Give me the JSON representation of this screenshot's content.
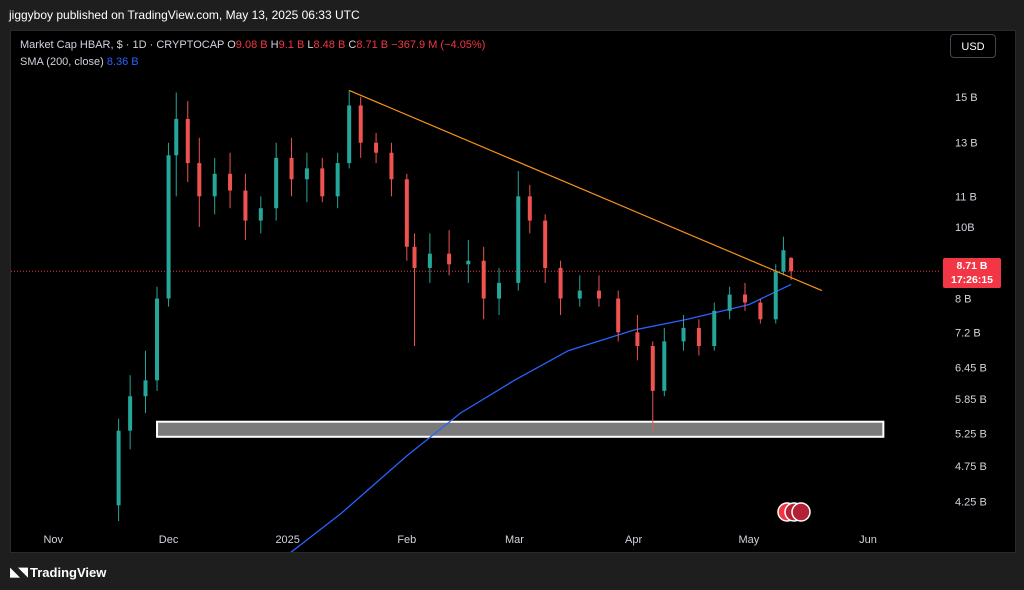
{
  "header": {
    "publisher_line": "jiggyboy published on TradingView.com, May 13, 2025 06:33 UTC"
  },
  "legend": {
    "symbol": "Market Cap HBAR, $ · 1D · CRYPTOCAP",
    "open_label": "O",
    "open": "9.08 B",
    "high_label": "H",
    "high": "9.1 B",
    "low_label": "L",
    "low": "8.48 B",
    "close_label": "C",
    "close": "8.71 B",
    "change": "−367.9 M (−4.05%)",
    "sma_label": "SMA (200, close)",
    "sma_value": "8.36 B"
  },
  "currency_button": "USD",
  "price_tag": {
    "value": "8.71 B",
    "countdown": "17:26:15"
  },
  "footer": {
    "brand": "TradingView"
  },
  "colors": {
    "up": "#26a69a",
    "down": "#ef5350",
    "sma": "#2962ff",
    "trendline": "#f7931a",
    "last_price": "#f23645"
  },
  "chart_data": {
    "type": "candlestick",
    "title": "Market Cap HBAR",
    "y_scale": "log",
    "y_ticks": [
      "15 B",
      "13 B",
      "11 B",
      "10B",
      "8 B",
      "7.2 B",
      "6.45 B",
      "5.85 B",
      "5.25 B",
      "4.75 B",
      "4.25 B"
    ],
    "y_tick_values": [
      15,
      13,
      11,
      10,
      8,
      7.2,
      6.45,
      5.85,
      5.25,
      4.75,
      4.25
    ],
    "x_ticks": [
      "Nov",
      "Dec",
      "2025",
      "Feb",
      "Mar",
      "Apr",
      "May",
      "Jun"
    ],
    "last_price": 8.71,
    "trendline": {
      "from": {
        "date": "2025-01-17",
        "value": 15.3
      },
      "to": {
        "date": "2025-05-20",
        "value": 8.2
      }
    },
    "support_zone": {
      "from_date": "2024-11-28",
      "to_date": "2025-06-05",
      "low": 5.2,
      "high": 5.45
    },
    "sma": {
      "name": "SMA (200, close)",
      "points": [
        [
          "2025-01-01",
          3.6
        ],
        [
          "2025-01-15",
          4.1
        ],
        [
          "2025-02-01",
          4.9
        ],
        [
          "2025-02-15",
          5.6
        ],
        [
          "2025-03-01",
          6.2
        ],
        [
          "2025-03-15",
          6.8
        ],
        [
          "2025-04-01",
          7.25
        ],
        [
          "2025-04-15",
          7.5
        ],
        [
          "2025-05-01",
          7.85
        ],
        [
          "2025-05-12",
          8.36
        ]
      ]
    },
    "candles_approx": [
      [
        "2024-11-18",
        4.2,
        5.5,
        4.0,
        5.3
      ],
      [
        "2024-11-21",
        5.3,
        6.3,
        5.0,
        5.9
      ],
      [
        "2024-11-25",
        5.9,
        6.8,
        5.6,
        6.2
      ],
      [
        "2024-11-28",
        6.2,
        8.3,
        6.0,
        8.0
      ],
      [
        "2024-12-01",
        8.0,
        13.0,
        7.8,
        12.5
      ],
      [
        "2024-12-03",
        12.5,
        15.2,
        11.0,
        14.0
      ],
      [
        "2024-12-06",
        14.0,
        14.8,
        11.5,
        12.2
      ],
      [
        "2024-12-09",
        12.2,
        13.2,
        10.0,
        11.0
      ],
      [
        "2024-12-13",
        11.0,
        12.4,
        10.4,
        11.8
      ],
      [
        "2024-12-17",
        11.8,
        12.6,
        10.6,
        11.2
      ],
      [
        "2024-12-21",
        11.2,
        11.8,
        9.6,
        10.2
      ],
      [
        "2024-12-25",
        10.2,
        11.0,
        9.8,
        10.6
      ],
      [
        "2024-12-29",
        10.6,
        13.0,
        10.2,
        12.4
      ],
      [
        "2025-01-02",
        12.4,
        13.2,
        11.0,
        11.6
      ],
      [
        "2025-01-06",
        11.6,
        12.6,
        10.8,
        12.0
      ],
      [
        "2025-01-10",
        12.0,
        12.4,
        10.8,
        11.0
      ],
      [
        "2025-01-14",
        11.0,
        12.6,
        10.6,
        12.2
      ],
      [
        "2025-01-17",
        12.2,
        15.3,
        12.0,
        14.6
      ],
      [
        "2025-01-20",
        14.6,
        15.0,
        12.4,
        13.0
      ],
      [
        "2025-01-24",
        13.0,
        13.4,
        12.2,
        12.6
      ],
      [
        "2025-01-28",
        12.6,
        13.0,
        11.0,
        11.6
      ],
      [
        "2025-02-01",
        11.6,
        11.8,
        9.0,
        9.4
      ],
      [
        "2025-02-03",
        9.4,
        9.8,
        6.9,
        8.8
      ],
      [
        "2025-02-07",
        8.8,
        9.8,
        8.4,
        9.2
      ],
      [
        "2025-02-12",
        9.2,
        9.9,
        8.6,
        8.9
      ],
      [
        "2025-02-17",
        8.9,
        9.6,
        8.4,
        9.0
      ],
      [
        "2025-02-21",
        9.0,
        9.4,
        7.5,
        8.0
      ],
      [
        "2025-02-25",
        8.0,
        8.8,
        7.6,
        8.4
      ],
      [
        "2025-03-02",
        8.4,
        11.9,
        8.2,
        11.0
      ],
      [
        "2025-03-05",
        11.0,
        11.4,
        9.8,
        10.2
      ],
      [
        "2025-03-09",
        10.2,
        10.4,
        8.4,
        8.8
      ],
      [
        "2025-03-13",
        8.8,
        9.0,
        7.6,
        8.0
      ],
      [
        "2025-03-18",
        8.0,
        8.6,
        7.8,
        8.2
      ],
      [
        "2025-03-23",
        8.2,
        8.6,
        7.8,
        8.0
      ],
      [
        "2025-03-28",
        8.0,
        8.2,
        7.0,
        7.2
      ],
      [
        "2025-04-02",
        7.2,
        7.6,
        6.6,
        6.9
      ],
      [
        "2025-04-06",
        6.9,
        7.0,
        5.3,
        6.0
      ],
      [
        "2025-04-09",
        6.0,
        7.3,
        5.9,
        7.0
      ],
      [
        "2025-04-14",
        7.0,
        7.6,
        6.8,
        7.3
      ],
      [
        "2025-04-18",
        7.3,
        7.5,
        6.7,
        6.9
      ],
      [
        "2025-04-22",
        6.9,
        7.9,
        6.8,
        7.7
      ],
      [
        "2025-04-26",
        7.7,
        8.3,
        7.5,
        8.1
      ],
      [
        "2025-04-30",
        8.1,
        8.4,
        7.7,
        7.9
      ],
      [
        "2025-05-04",
        7.9,
        8.0,
        7.4,
        7.5
      ],
      [
        "2025-05-08",
        7.5,
        8.9,
        7.4,
        8.7
      ],
      [
        "2025-05-10",
        8.7,
        9.7,
        8.6,
        9.3
      ],
      [
        "2025-05-12",
        9.08,
        9.1,
        8.48,
        8.71
      ]
    ]
  }
}
